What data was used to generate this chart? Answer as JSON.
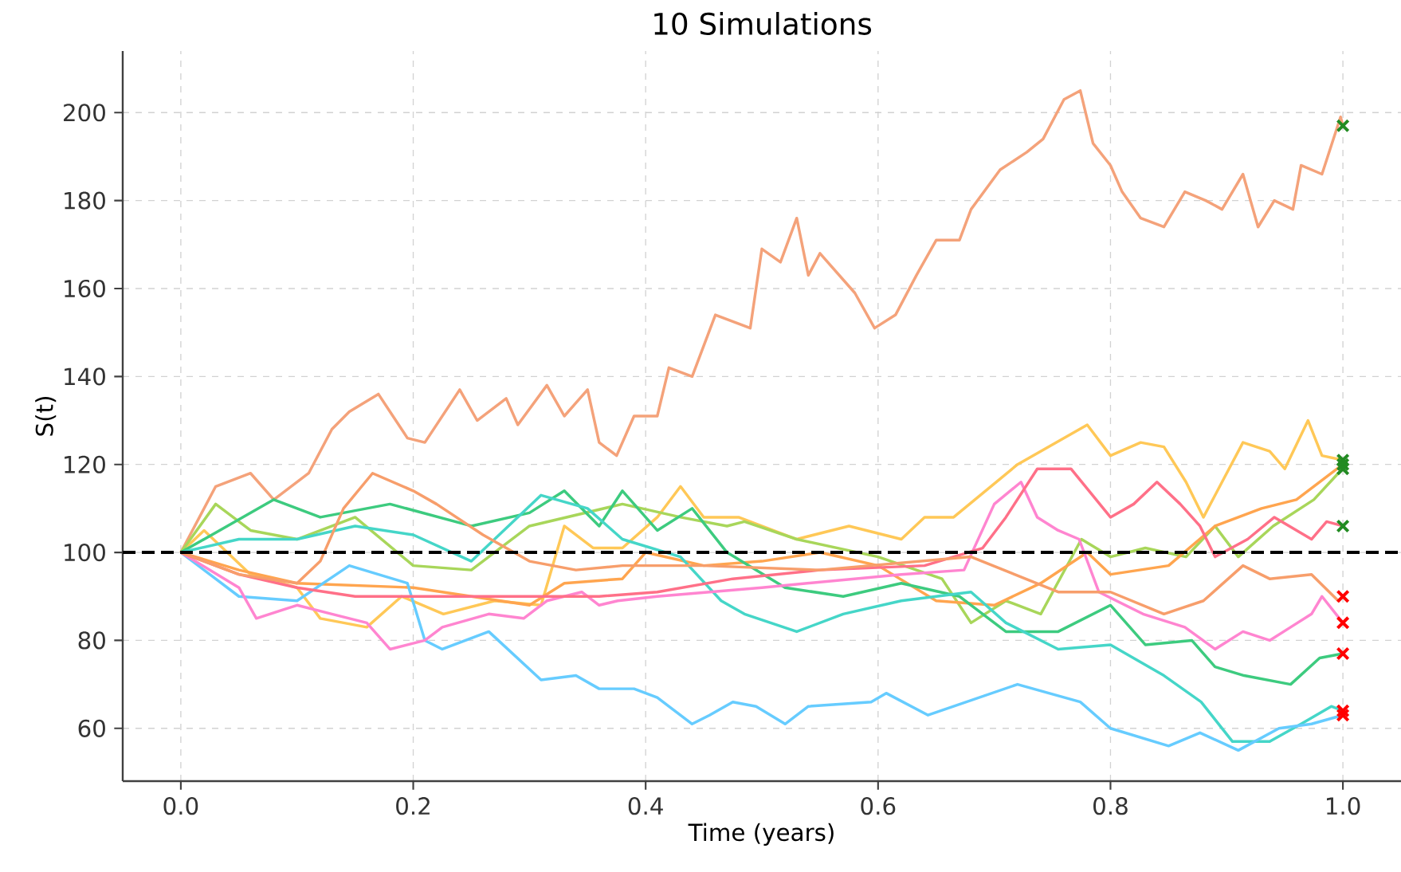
{
  "chart_data": {
    "type": "line",
    "title": "10 Simulations",
    "xlabel": "Time (years)",
    "ylabel": "S(t)",
    "xlim": [
      -0.05,
      1.05
    ],
    "ylim": [
      48,
      214
    ],
    "xticks": [
      {
        "value": 0,
        "label": "0.0"
      },
      0.2,
      0.4,
      0.6,
      0.8,
      {
        "value": 1,
        "label": "1.0"
      }
    ],
    "yticks": [
      60,
      80,
      100,
      120,
      140,
      160,
      180,
      200
    ],
    "grid": true,
    "line_style": "solid",
    "ref_lines": [
      {
        "axis": "y",
        "value": 100,
        "color": "#000000",
        "line_style": "dashed"
      }
    ],
    "series": [
      {
        "color": "#F4A27A",
        "x": [
          0,
          0.03,
          0.06,
          0.08,
          0.11,
          0.13,
          0.145,
          0.17,
          0.195,
          0.21,
          0.24,
          0.255,
          0.28,
          0.29,
          0.315,
          0.33,
          0.35,
          0.36,
          0.375,
          0.39,
          0.41,
          0.42,
          0.44,
          0.46,
          0.49,
          0.5,
          0.516,
          0.53,
          0.54,
          0.55,
          0.58,
          0.597,
          0.615,
          0.633,
          0.65,
          0.67,
          0.68,
          0.705,
          0.728,
          0.742,
          0.76,
          0.774,
          0.785,
          0.8,
          0.81,
          0.826,
          0.846,
          0.864,
          0.882,
          0.896,
          0.914,
          0.927,
          0.941,
          0.957,
          0.964,
          0.982,
          0.998,
          1.0
        ],
        "values": [
          100,
          115,
          118,
          112,
          118,
          128,
          132,
          136,
          126,
          125,
          137,
          130,
          135,
          129,
          138,
          131,
          137,
          125,
          122,
          131,
          131,
          142,
          140,
          154,
          151,
          169,
          166,
          176,
          163,
          168,
          159,
          151,
          154,
          163,
          171,
          171,
          178,
          187,
          191,
          194,
          203,
          205,
          193,
          188,
          182,
          176,
          174,
          182,
          180,
          178,
          186,
          174,
          180,
          178,
          188,
          186,
          199,
          197
        ]
      },
      {
        "color": "#FFC857",
        "x": [
          0,
          0.02,
          0.06,
          0.1,
          0.12,
          0.16,
          0.19,
          0.226,
          0.27,
          0.31,
          0.33,
          0.355,
          0.38,
          0.41,
          0.43,
          0.45,
          0.48,
          0.53,
          0.575,
          0.62,
          0.64,
          0.665,
          0.72,
          0.78,
          0.8,
          0.826,
          0.846,
          0.865,
          0.88,
          0.896,
          0.914,
          0.937,
          0.95,
          0.97,
          0.982,
          1.0
        ],
        "values": [
          100,
          105,
          95,
          92,
          85,
          83,
          90,
          86,
          89,
          88,
          106,
          101,
          101,
          108,
          115,
          108,
          108,
          103,
          106,
          103,
          108,
          108,
          120,
          129,
          122,
          125,
          124,
          116,
          108,
          116,
          125,
          123,
          119,
          130,
          122,
          121
        ]
      },
      {
        "color": "#A8D65A",
        "x": [
          0,
          0.03,
          0.06,
          0.1,
          0.15,
          0.2,
          0.25,
          0.3,
          0.38,
          0.43,
          0.47,
          0.485,
          0.53,
          0.6,
          0.655,
          0.68,
          0.71,
          0.74,
          0.775,
          0.8,
          0.83,
          0.865,
          0.89,
          0.91,
          0.94,
          0.975,
          0.996,
          1.0
        ],
        "values": [
          100,
          111,
          105,
          103,
          108,
          97,
          96,
          106,
          111,
          108,
          106,
          107,
          103,
          99,
          94,
          84,
          89,
          86,
          103,
          99,
          101,
          99,
          106,
          99,
          106,
          112,
          118,
          119
        ]
      },
      {
        "color": "#FFA54F",
        "x": [
          0,
          0.05,
          0.1,
          0.2,
          0.3,
          0.33,
          0.38,
          0.4,
          0.45,
          0.5,
          0.55,
          0.6,
          0.65,
          0.7,
          0.74,
          0.78,
          0.8,
          0.85,
          0.89,
          0.93,
          0.96,
          0.99,
          1.0
        ],
        "values": [
          100,
          96,
          93,
          92,
          88,
          93,
          94,
          100,
          97,
          98,
          100,
          97,
          89,
          88,
          93,
          100,
          95,
          97,
          106,
          110,
          112,
          118,
          120
        ]
      },
      {
        "color": "#3DCB7F",
        "x": [
          0,
          0.04,
          0.08,
          0.12,
          0.18,
          0.25,
          0.3,
          0.33,
          0.36,
          0.38,
          0.41,
          0.44,
          0.47,
          0.52,
          0.57,
          0.62,
          0.67,
          0.71,
          0.755,
          0.8,
          0.83,
          0.87,
          0.89,
          0.915,
          0.955,
          0.98,
          1.0
        ],
        "values": [
          100,
          106,
          112,
          108,
          111,
          106,
          109,
          114,
          106,
          114,
          105,
          110,
          100,
          92,
          90,
          93,
          90,
          82,
          82,
          88,
          79,
          80,
          74,
          72,
          70,
          76,
          77
        ]
      },
      {
        "color": "#45D6C8",
        "x": [
          0,
          0.05,
          0.1,
          0.15,
          0.2,
          0.25,
          0.31,
          0.35,
          0.38,
          0.43,
          0.465,
          0.485,
          0.53,
          0.57,
          0.62,
          0.68,
          0.71,
          0.755,
          0.8,
          0.846,
          0.878,
          0.905,
          0.937,
          0.964,
          0.99,
          1.0
        ],
        "values": [
          100,
          103,
          103,
          106,
          104,
          98,
          113,
          110,
          103,
          99,
          89,
          86,
          82,
          86,
          89,
          91,
          84,
          78,
          79,
          72,
          66,
          57,
          57,
          61,
          65,
          64
        ]
      },
      {
        "color": "#66CCFF",
        "x": [
          0,
          0.05,
          0.1,
          0.145,
          0.195,
          0.21,
          0.225,
          0.265,
          0.31,
          0.34,
          0.36,
          0.39,
          0.41,
          0.44,
          0.455,
          0.475,
          0.495,
          0.52,
          0.54,
          0.594,
          0.607,
          0.643,
          0.72,
          0.774,
          0.8,
          0.85,
          0.877,
          0.91,
          0.945,
          0.973,
          1.0
        ],
        "values": [
          100,
          90,
          89,
          97,
          93,
          80,
          78,
          82,
          71,
          72,
          69,
          69,
          67,
          61,
          63,
          66,
          65,
          61,
          65,
          66,
          68,
          63,
          70,
          66,
          60,
          56,
          59,
          55,
          60,
          61,
          63
        ]
      },
      {
        "color": "#FF85D0",
        "x": [
          0,
          0.05,
          0.065,
          0.1,
          0.13,
          0.16,
          0.18,
          0.21,
          0.225,
          0.265,
          0.295,
          0.315,
          0.345,
          0.36,
          0.376,
          0.41,
          0.5,
          0.62,
          0.674,
          0.7,
          0.723,
          0.737,
          0.755,
          0.773,
          0.79,
          0.828,
          0.864,
          0.89,
          0.914,
          0.937,
          0.955,
          0.973,
          0.982,
          1.0
        ],
        "values": [
          100,
          92,
          85,
          88,
          86,
          84,
          78,
          80,
          83,
          86,
          85,
          89,
          91,
          88,
          89,
          90,
          92,
          95,
          96,
          111,
          116,
          108,
          105,
          103,
          91,
          86,
          83,
          78,
          82,
          80,
          83,
          86,
          90,
          84
        ]
      },
      {
        "color": "#FF7088",
        "x": [
          0,
          0.05,
          0.1,
          0.15,
          0.2,
          0.26,
          0.36,
          0.41,
          0.475,
          0.55,
          0.64,
          0.69,
          0.71,
          0.737,
          0.766,
          0.8,
          0.82,
          0.84,
          0.86,
          0.877,
          0.89,
          0.918,
          0.941,
          0.973,
          0.986,
          1.0
        ],
        "values": [
          100,
          95,
          92,
          90,
          90,
          90,
          90,
          91,
          94,
          96,
          97,
          101,
          108,
          119,
          119,
          108,
          111,
          116,
          111,
          106,
          99,
          103,
          108,
          103,
          107,
          106
        ]
      },
      {
        "color": "#F79E6B",
        "x": [
          0,
          0.05,
          0.1,
          0.12,
          0.14,
          0.165,
          0.2,
          0.22,
          0.26,
          0.3,
          0.34,
          0.38,
          0.45,
          0.55,
          0.68,
          0.755,
          0.8,
          0.846,
          0.88,
          0.914,
          0.937,
          0.973,
          0.996,
          1.0
        ],
        "values": [
          100,
          95,
          93,
          98,
          110,
          118,
          114,
          111,
          104,
          98,
          96,
          97,
          97,
          96,
          99,
          91,
          91,
          86,
          89,
          97,
          94,
          95,
          89,
          90
        ]
      },
      {
        "type": "scatter",
        "marker": "cross",
        "x": [
          1,
          1,
          1,
          1,
          1,
          1,
          1,
          1,
          1,
          1
        ],
        "values": [
          197,
          121,
          120,
          119,
          106,
          90,
          84,
          77,
          64,
          63
        ],
        "colors": [
          "#228B22",
          "#228B22",
          "#228B22",
          "#228B22",
          "#228B22",
          "#FF0000",
          "#FF0000",
          "#FF0000",
          "#FF0000",
          "#FF0000"
        ]
      }
    ]
  }
}
